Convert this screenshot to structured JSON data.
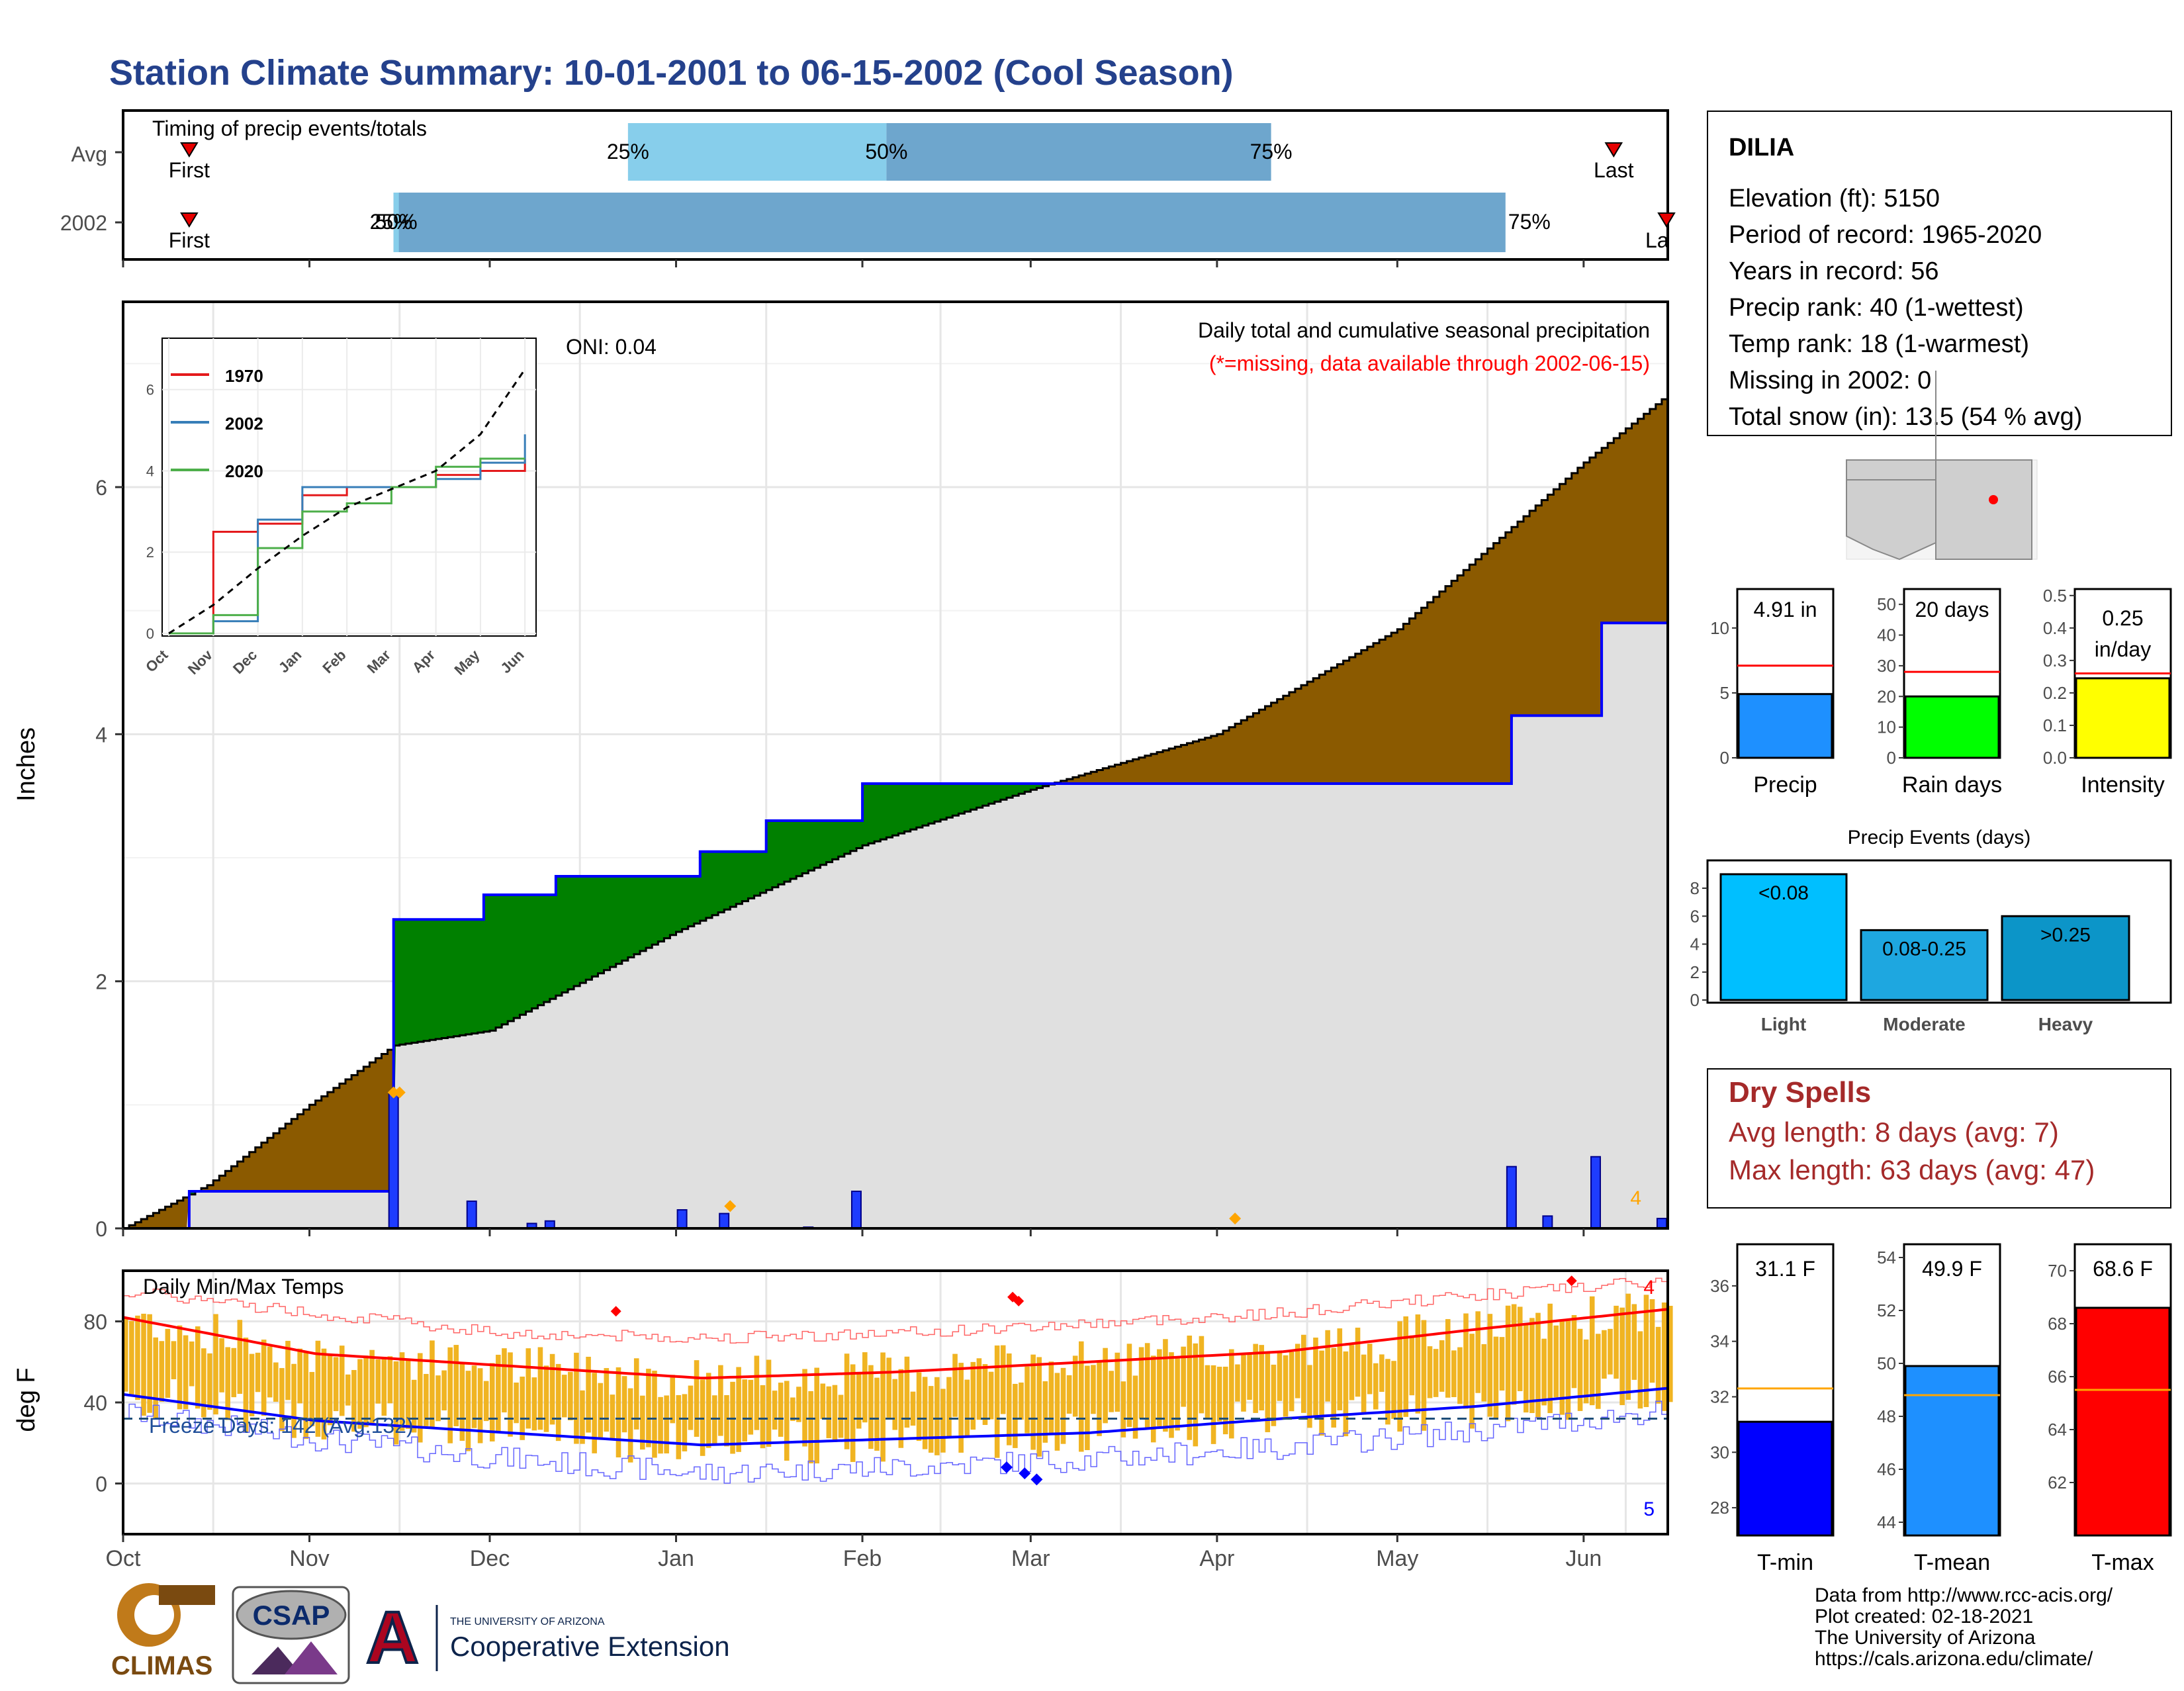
{
  "title": "Station Climate Summary: 10-01-2001 to 06-15-2002 (Cool Season)",
  "timing": {
    "label": "Timing of precip events/totals",
    "rows": [
      "Avg",
      "2002"
    ],
    "first_label": "First",
    "last_label": "Last",
    "last_label_clipped": "La",
    "avg_pcts": [
      "25%",
      "50%",
      "75%"
    ],
    "yr_pcts": [
      "25%",
      "50%",
      "75%"
    ]
  },
  "main": {
    "ylabel": "Inches",
    "oni": "ONI: 0.04",
    "caption1": "Daily total and cumulative seasonal precipitation",
    "caption2": "(*=missing, data available through 2002-06-15)",
    "count_label": "4",
    "yticks": [
      "0",
      "2",
      "4",
      "6"
    ]
  },
  "inset": {
    "legend": [
      "1970",
      "2002",
      "2020"
    ],
    "colors": {
      "1970": "#e41a1c",
      "2002": "#377eb8",
      "2020": "#4daf4a"
    },
    "yticks": [
      "0",
      "2",
      "4",
      "6"
    ],
    "months": [
      "Oct",
      "Nov",
      "Dec",
      "Jan",
      "Feb",
      "Mar",
      "Apr",
      "May",
      "Jun"
    ]
  },
  "temps": {
    "label": "Daily Min/Max Temps",
    "freeze": "Freeze Days: 142 (Avg:132)",
    "ylabel": "deg F",
    "yticks": [
      "0",
      "40",
      "80"
    ],
    "max_count": "4",
    "min_count": "5",
    "months": [
      "Oct",
      "Nov",
      "Dec",
      "Jan",
      "Feb",
      "Mar",
      "Apr",
      "May",
      "Jun"
    ]
  },
  "info": {
    "station": "DILIA",
    "lines": [
      "Elevation (ft): 5150",
      "Period of record: 1965-2020",
      "Years in record: 56",
      "Precip rank: 40 (1-wettest)",
      "Temp rank: 18 (1-warmest)",
      "Missing in 2002: 0",
      "Total snow (in): 13.5 (54 % avg)"
    ]
  },
  "precip_bars": [
    {
      "label": "Precip",
      "value_text": "4.91 in",
      "value": 4.91,
      "avg": 7.1,
      "max": 13,
      "ticks": [
        "0",
        "5",
        "10"
      ],
      "color": "#1e90ff"
    },
    {
      "label": "Rain days",
      "value_text": "20 days",
      "value": 20,
      "avg": 28,
      "max": 55,
      "ticks": [
        "0",
        "10",
        "20",
        "30",
        "40",
        "50"
      ],
      "color": "#00ff00"
    },
    {
      "label": "Intensity",
      "value_text": "0.25",
      "value_text2": "in/day",
      "value": 0.245,
      "avg": 0.26,
      "max": 0.52,
      "ticks": [
        "0.0",
        "0.1",
        "0.2",
        "0.3",
        "0.4",
        "0.5"
      ],
      "color": "#ffff00"
    }
  ],
  "events": {
    "title": "Precip Events (days)",
    "ticks": [
      "0",
      "2",
      "4",
      "6",
      "8"
    ],
    "bars": [
      {
        "category": "Light",
        "label": "<0.08",
        "value": 9,
        "color": "#00bfff"
      },
      {
        "category": "Moderate",
        "label": "0.08-0.25",
        "value": 5,
        "color": "#1ea7e0"
      },
      {
        "category": "Heavy",
        "label": ">0.25",
        "value": 6,
        "color": "#0c95c8"
      }
    ]
  },
  "dry": {
    "title": "Dry Spells",
    "avg": "Avg length: 8 days (avg: 7)",
    "max": "Max length: 63 days (avg: 47)"
  },
  "temp_bars": [
    {
      "label": "T-min",
      "value_text": "31.1 F",
      "value": 31.1,
      "avg": 32.3,
      "min": 27,
      "max": 37.5,
      "ticks": [
        "28",
        "30",
        "32",
        "34",
        "36"
      ],
      "color": "#0000ff"
    },
    {
      "label": "T-mean",
      "value_text": "49.9 F",
      "value": 49.9,
      "avg": 48.8,
      "min": 43.5,
      "max": 54.5,
      "ticks": [
        "44",
        "46",
        "48",
        "50",
        "52",
        "54"
      ],
      "color": "#1e90ff"
    },
    {
      "label": "T-max",
      "value_text": "68.6 F",
      "value": 68.6,
      "avg": 65.5,
      "min": 60,
      "max": 71,
      "ticks": [
        "62",
        "64",
        "66",
        "68",
        "70"
      ],
      "color": "#ff0000"
    }
  ],
  "footer": {
    "lines": [
      "Data from http://www.rcc-acis.org/",
      "Plot created: 02-18-2021",
      "The University of Arizona",
      "https://cals.arizona.edu/climate/"
    ],
    "climas": "CLIMAS",
    "csap": "CSAP",
    "ua_small": "THE UNIVERSITY OF ARIZONA",
    "ua_big": "Cooperative Extension",
    "ua_mark": "A"
  },
  "chart_data": [
    {
      "type": "area",
      "title": "Daily total and cumulative seasonal precipitation",
      "ylabel": "Inches",
      "ylim": [
        0,
        7.5
      ],
      "x_range": [
        "2001-10-01",
        "2002-06-15"
      ],
      "series": [
        {
          "name": "2002",
          "x": [
            "2001-10-01",
            "2001-10-12",
            "2001-11-15",
            "2001-11-30",
            "2001-12-12",
            "2001-12-17",
            "2002-01-01",
            "2002-01-05",
            "2002-01-16",
            "2002-02-01",
            "2002-03-01",
            "2002-04-02",
            "2002-05-20",
            "2002-06-04",
            "2002-06-15"
          ],
          "values": [
            0,
            0.3,
            2.5,
            2.7,
            2.85,
            2.85,
            2.85,
            3.05,
            3.3,
            3.6,
            3.6,
            3.6,
            4.15,
            4.9,
            4.91
          ]
        },
        {
          "x": [
            "2001-10-01",
            "2001-10-15",
            "2001-11-01",
            "2001-11-15",
            "2001-12-01",
            "2002-01-01",
            "2002-02-01",
            "2002-03-01",
            "2002-04-01",
            "2002-05-01",
            "2002-06-01",
            "2002-06-15"
          ],
          "values": [
            0,
            0.35,
            1.0,
            1.48,
            1.6,
            2.4,
            3.1,
            3.55,
            4.0,
            4.85,
            6.2,
            6.75
          ]
        }
      ],
      "daily": [
        {
          "x": "2001-11-15",
          "value": 1.1
        },
        {
          "x": "2001-11-28",
          "value": 0.22
        },
        {
          "x": "2001-12-08",
          "value": 0.04
        },
        {
          "x": "2001-12-11",
          "value": 0.06
        },
        {
          "x": "2002-01-02",
          "value": 0.15
        },
        {
          "x": "2002-01-09",
          "value": 0.12
        },
        {
          "x": "2002-01-23",
          "value": 0.01
        },
        {
          "x": "2002-01-31",
          "value": 0.3
        },
        {
          "x": "2002-05-20",
          "value": 0.5
        },
        {
          "x": "2002-05-26",
          "value": 0.1
        },
        {
          "x": "2002-06-03",
          "value": 0.58
        },
        {
          "x": "2002-06-14",
          "value": 0.08
        }
      ]
    },
    {
      "type": "line",
      "title": "",
      "ylim": [
        0,
        7.2
      ],
      "categories": [
        "Oct",
        "Nov",
        "Dec",
        "Jan",
        "Feb",
        "Mar",
        "Apr",
        "May",
        "Jun"
      ],
      "series": [
        {
          "name": "1970",
          "values": [
            0,
            2.5,
            2.7,
            3.4,
            3.6,
            3.6,
            3.9,
            4.0,
            4.3
          ]
        },
        {
          "name": "2002",
          "values": [
            0,
            0.3,
            2.8,
            3.6,
            3.6,
            3.6,
            3.8,
            4.2,
            4.9
          ]
        },
        {
          "name": "2020",
          "values": [
            0,
            0.45,
            2.1,
            3.0,
            3.2,
            3.6,
            4.1,
            4.3,
            4.3
          ]
        },
        {
          "values": [
            0,
            0.7,
            1.6,
            2.4,
            3.1,
            3.55,
            4.0,
            4.9,
            6.5
          ]
        }
      ]
    },
    {
      "type": "bar",
      "title": "Daily Min/Max Temps",
      "ylabel": "deg F",
      "ylim": [
        -25,
        105
      ],
      "categories": [
        "Oct",
        "Nov",
        "Dec",
        "Jan",
        "Feb",
        "Mar",
        "Apr",
        "May",
        "Jun"
      ],
      "series": [
        {
          "values": [
            82,
            64,
            58,
            52,
            55,
            60,
            65,
            76,
            86
          ]
        },
        {
          "values": [
            44,
            31,
            25,
            19,
            22,
            25,
            32,
            38,
            47
          ]
        },
        {
          "values": [
            95,
            84,
            74,
            72,
            74,
            79,
            84,
            93,
            100
          ]
        },
        {
          "values": [
            35,
            22,
            12,
            5,
            8,
            12,
            18,
            26,
            36
          ]
        }
      ],
      "freeze_line": 32
    }
  ]
}
